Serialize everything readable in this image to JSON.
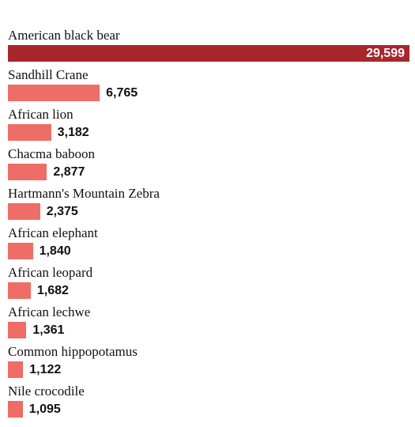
{
  "colors": {
    "highlight": "#a8272d",
    "bar": "#ee6d66",
    "text": "#111111"
  },
  "chart_data": {
    "type": "bar",
    "orientation": "horizontal",
    "categories": [
      "American black bear",
      "Sandhill Crane",
      "African lion",
      "Chacma baboon",
      "Hartmann's Mountain Zebra",
      "African elephant",
      "African leopard",
      "African lechwe",
      "Common hippopotamus",
      "Nile crocodile"
    ],
    "values": [
      29599,
      6765,
      3182,
      2877,
      2375,
      1840,
      1682,
      1361,
      1122,
      1095
    ],
    "value_labels": [
      "29,599",
      "6,765",
      "3,182",
      "2,877",
      "2,375",
      "1,840",
      "1,682",
      "1,361",
      "1,122",
      "1,095"
    ],
    "highlighted_index": 0,
    "xlim": [
      0,
      29599
    ],
    "grid": false,
    "legend": "none"
  }
}
